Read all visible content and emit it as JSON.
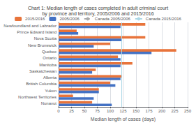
{
  "chart_data": {
    "type": "bar",
    "orientation": "horizontal",
    "title": "Chart 1: Median length of cases completed in adult criminal court\nby province and territory, 2005/2006 and 2015/2016",
    "xlabel": "Median length of cases (days)",
    "categories": [
      "Newfoundland and Labrador",
      "Prince Edward Island",
      "Nova Scotia",
      "New Brunswick",
      "Quebec",
      "Ontario",
      "Manitoba",
      "Saskatchewan",
      "Alberta",
      "British Columbia",
      "Yukon",
      "Northwest Territories",
      "Nunavut"
    ],
    "series": [
      {
        "name": "2015/2016",
        "color": "#E8743B",
        "values": [
          168,
          35,
          168,
          100,
          228,
          115,
          143,
          72,
          122,
          100,
          78,
          28,
          65
        ]
      },
      {
        "name": "2005/2006",
        "color": "#4472C4",
        "values": [
          120,
          38,
          122,
          68,
          180,
          120,
          120,
          65,
          120,
          110,
          78,
          68,
          103
        ]
      }
    ],
    "reference_lines": [
      {
        "name": "Canada 2005/2006",
        "value": 122,
        "color": "#AAAAAA",
        "line_style": "dashed"
      },
      {
        "name": "Canada 2015/2016",
        "value": 122,
        "color": "#ADD8E6",
        "line_style": "solid"
      }
    ],
    "xlim": [
      0,
      250
    ],
    "xticks": [
      0,
      25,
      50,
      75,
      100,
      125,
      150,
      175,
      200,
      225,
      250
    ],
    "grid": true,
    "legend": "top"
  }
}
